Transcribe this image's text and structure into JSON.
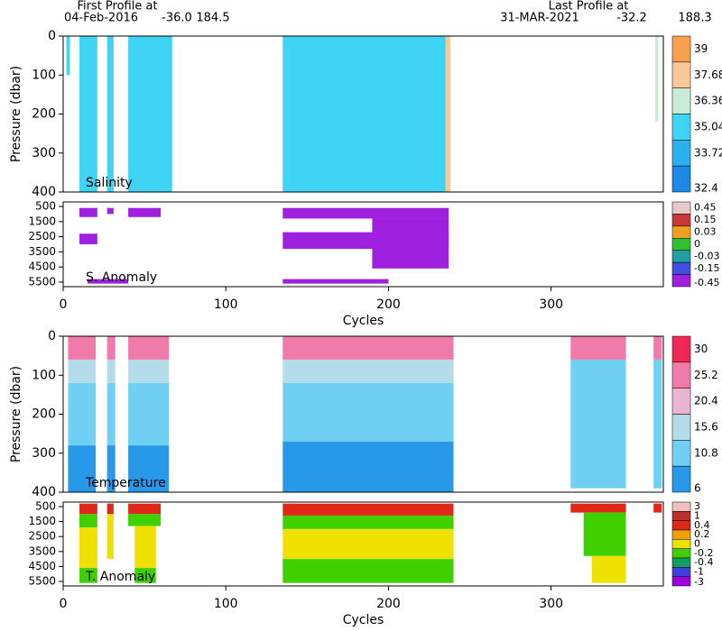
{
  "header": {
    "first_label": "First Profile at",
    "first_date": "04-Feb-2016",
    "first_lat": "-36.0",
    "first_lon": "184.5",
    "last_label": "Last Profile at",
    "last_date": "31-MAR-2021",
    "last_lat": "-32.2",
    "last_lon": "188.3"
  },
  "chart_data": [
    {
      "type": "heatmap",
      "title": "Salinity",
      "ylabel": "Pressure (dbar)",
      "xlim": [
        0,
        369
      ],
      "ylim": [
        400,
        0
      ],
      "yticks": [
        0,
        100,
        200,
        300,
        400
      ],
      "colorbar": {
        "ticks": [
          39,
          37.68,
          36.36,
          35.04,
          33.72,
          32.4
        ],
        "colors": [
          "#f8a050",
          "#f8c898",
          "#c8ecd8",
          "#40d4f4",
          "#2ab0ee",
          "#1e88e6"
        ]
      },
      "cells": [
        {
          "x": [
            2,
            4
          ],
          "y": [
            0,
            100
          ],
          "value": 35.3
        },
        {
          "x": [
            10,
            21
          ],
          "y": [
            0,
            400
          ],
          "value": 35.3
        },
        {
          "x": [
            27,
            31
          ],
          "y": [
            0,
            400
          ],
          "value": 35.3
        },
        {
          "x": [
            40,
            67
          ],
          "y": [
            0,
            400
          ],
          "value": 35.3
        },
        {
          "x": [
            135,
            235
          ],
          "y": [
            0,
            400
          ],
          "value": 35.3
        },
        {
          "x": [
            235,
            238
          ],
          "y": [
            0,
            400
          ],
          "value": 38
        },
        {
          "x": [
            364,
            366
          ],
          "y": [
            0,
            220
          ],
          "value": 36.5
        }
      ]
    },
    {
      "type": "heatmap",
      "title": "S. Anomaly",
      "xlabel": "Cycles",
      "xlim": [
        0,
        369
      ],
      "xticks": [
        0,
        100,
        200,
        300
      ],
      "ylim": [
        5800,
        200
      ],
      "yticks": [
        500,
        1500,
        2500,
        3500,
        4500,
        5500
      ],
      "colorbar": {
        "ticks": [
          0.45,
          0.15,
          0.03,
          0,
          -0.03,
          -0.15,
          -0.45
        ],
        "colors": [
          "#e8c8c8",
          "#c83838",
          "#f0a020",
          "#30c030",
          "#20a0a0",
          "#4050e0",
          "#a020e0"
        ]
      },
      "cells": [
        {
          "x": [
            10,
            21
          ],
          "y": [
            600,
            1200
          ],
          "value": -0.3
        },
        {
          "x": [
            10,
            21
          ],
          "y": [
            2300,
            3000
          ],
          "value": -0.5
        },
        {
          "x": [
            27,
            31
          ],
          "y": [
            600,
            1000
          ],
          "value": -0.3
        },
        {
          "x": [
            40,
            60
          ],
          "y": [
            600,
            1200
          ],
          "value": -0.3
        },
        {
          "x": [
            15,
            40
          ],
          "y": [
            5300,
            5600
          ],
          "value": -0.5
        },
        {
          "x": [
            135,
            237
          ],
          "y": [
            600,
            1300
          ],
          "value": -0.3
        },
        {
          "x": [
            135,
            237
          ],
          "y": [
            2200,
            3300
          ],
          "value": -0.5
        },
        {
          "x": [
            190,
            237
          ],
          "y": [
            1300,
            4600
          ],
          "value": -0.5
        },
        {
          "x": [
            135,
            200
          ],
          "y": [
            5300,
            5600
          ],
          "value": -0.5
        }
      ]
    },
    {
      "type": "heatmap",
      "title": "Temperature",
      "ylabel": "Pressure (dbar)",
      "xlim": [
        0,
        369
      ],
      "ylim": [
        400,
        0
      ],
      "yticks": [
        0,
        100,
        200,
        300,
        400
      ],
      "colorbar": {
        "ticks": [
          30,
          25.2,
          20.4,
          15.6,
          10.8,
          6
        ],
        "colors": [
          "#f02858",
          "#f07aa8",
          "#e8b4d0",
          "#b4dce8",
          "#70d0f4",
          "#2898e8"
        ]
      },
      "cells": [
        {
          "x": [
            3,
            20
          ],
          "y": [
            0,
            60
          ],
          "value": 26
        },
        {
          "x": [
            3,
            20
          ],
          "y": [
            60,
            120
          ],
          "value": 17
        },
        {
          "x": [
            3,
            20
          ],
          "y": [
            120,
            280
          ],
          "value": 13
        },
        {
          "x": [
            3,
            20
          ],
          "y": [
            280,
            400
          ],
          "value": 9
        },
        {
          "x": [
            27,
            32
          ],
          "y": [
            0,
            60
          ],
          "value": 26
        },
        {
          "x": [
            27,
            32
          ],
          "y": [
            60,
            120
          ],
          "value": 17
        },
        {
          "x": [
            27,
            32
          ],
          "y": [
            120,
            280
          ],
          "value": 13
        },
        {
          "x": [
            27,
            32
          ],
          "y": [
            280,
            400
          ],
          "value": 9
        },
        {
          "x": [
            40,
            65
          ],
          "y": [
            0,
            60
          ],
          "value": 26
        },
        {
          "x": [
            40,
            65
          ],
          "y": [
            60,
            120
          ],
          "value": 17
        },
        {
          "x": [
            40,
            65
          ],
          "y": [
            120,
            280
          ],
          "value": 13
        },
        {
          "x": [
            40,
            65
          ],
          "y": [
            280,
            400
          ],
          "value": 9
        },
        {
          "x": [
            135,
            240
          ],
          "y": [
            0,
            60
          ],
          "value": 26
        },
        {
          "x": [
            135,
            240
          ],
          "y": [
            60,
            120
          ],
          "value": 17
        },
        {
          "x": [
            135,
            240
          ],
          "y": [
            120,
            270
          ],
          "value": 13
        },
        {
          "x": [
            135,
            240
          ],
          "y": [
            270,
            400
          ],
          "value": 9
        },
        {
          "x": [
            312,
            346
          ],
          "y": [
            0,
            60
          ],
          "value": 26
        },
        {
          "x": [
            312,
            346
          ],
          "y": [
            60,
            390
          ],
          "value": 13
        },
        {
          "x": [
            363,
            368
          ],
          "y": [
            0,
            60
          ],
          "value": 26
        },
        {
          "x": [
            363,
            368
          ],
          "y": [
            60,
            390
          ],
          "value": 13
        }
      ]
    },
    {
      "type": "heatmap",
      "title": "T. Anomaly",
      "xlabel": "Cycles",
      "xlim": [
        0,
        369
      ],
      "xticks": [
        0,
        100,
        200,
        300
      ],
      "ylim": [
        5800,
        200
      ],
      "yticks": [
        500,
        1500,
        2500,
        3500,
        4500,
        5500
      ],
      "colorbar": {
        "ticks": [
          3,
          1,
          0.4,
          0.2,
          0,
          -0.2,
          -0.4,
          -1,
          -3
        ],
        "colors": [
          "#f0c0c0",
          "#b83030",
          "#e02818",
          "#f0a000",
          "#f0e000",
          "#40d000",
          "#10a060",
          "#4040e0",
          "#a000e0"
        ]
      },
      "cells": [
        {
          "x": [
            10,
            21
          ],
          "y": [
            300,
            1000
          ],
          "value": 0.5
        },
        {
          "x": [
            10,
            21
          ],
          "y": [
            1000,
            1900
          ],
          "value": -0.1
        },
        {
          "x": [
            10,
            21
          ],
          "y": [
            1900,
            4600
          ],
          "value": 0.1
        },
        {
          "x": [
            10,
            21
          ],
          "y": [
            4600,
            5600
          ],
          "value": -0.1
        },
        {
          "x": [
            27,
            31
          ],
          "y": [
            300,
            1000
          ],
          "value": 0.5
        },
        {
          "x": [
            27,
            31
          ],
          "y": [
            1000,
            4000
          ],
          "value": 0.1
        },
        {
          "x": [
            40,
            60
          ],
          "y": [
            300,
            1000
          ],
          "value": 0.5
        },
        {
          "x": [
            40,
            60
          ],
          "y": [
            1000,
            1800
          ],
          "value": -0.1
        },
        {
          "x": [
            44,
            57
          ],
          "y": [
            1800,
            4600
          ],
          "value": 0.1
        },
        {
          "x": [
            44,
            57
          ],
          "y": [
            4600,
            5600
          ],
          "value": -0.1
        },
        {
          "x": [
            135,
            240
          ],
          "y": [
            300,
            1100
          ],
          "value": 0.5
        },
        {
          "x": [
            135,
            240
          ],
          "y": [
            1100,
            2000
          ],
          "value": -0.1
        },
        {
          "x": [
            135,
            240
          ],
          "y": [
            2000,
            4000
          ],
          "value": 0.1
        },
        {
          "x": [
            135,
            240
          ],
          "y": [
            4000,
            5600
          ],
          "value": -0.1
        },
        {
          "x": [
            312,
            346
          ],
          "y": [
            300,
            900
          ],
          "value": 0.5
        },
        {
          "x": [
            320,
            346
          ],
          "y": [
            900,
            3800
          ],
          "value": -0.1
        },
        {
          "x": [
            325,
            346
          ],
          "y": [
            3800,
            5600
          ],
          "value": 0.1
        },
        {
          "x": [
            363,
            368
          ],
          "y": [
            300,
            900
          ],
          "value": 0.5
        }
      ]
    }
  ]
}
